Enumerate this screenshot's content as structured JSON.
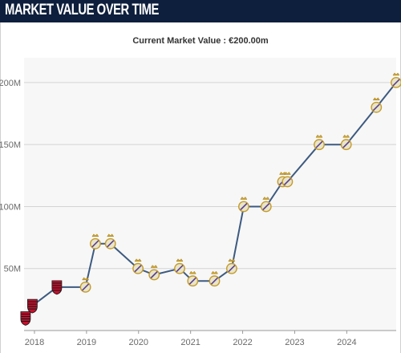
{
  "header": {
    "title": "MARKET VALUE OVER TIME"
  },
  "subtitle": "Current Market Value : €200.00m",
  "colors": {
    "header_bg": "#0d1f3c",
    "line": "#3d5a80",
    "plot_bg": "#f7f7f7",
    "grid": "#d4d4d4",
    "club_flamengo": "#c8102e",
    "club_real_madrid": "#e9e5c9"
  },
  "chart_data": {
    "type": "line",
    "title": "",
    "xlabel": "",
    "ylabel": "",
    "x_ticks": [
      "2018",
      "2019",
      "2020",
      "2021",
      "2022",
      "2023",
      "2024"
    ],
    "y_ticks": [
      "50M",
      "100M",
      "150M",
      "200M"
    ],
    "ylim": [
      0,
      220
    ],
    "xlim": [
      2017.8,
      2024.95
    ],
    "grid": "horizontal",
    "legend": "none",
    "series": [
      {
        "x": [
          2017.83,
          2017.96,
          2018.43,
          2018.98,
          2019.17,
          2019.46,
          2019.99,
          2020.3,
          2020.79,
          2021.04,
          2021.46,
          2021.79,
          2022.02,
          2022.45,
          2022.77,
          2022.86,
          2023.47,
          2023.99,
          2024.57,
          2024.95
        ],
        "y": [
          10,
          20,
          35,
          35,
          70,
          70,
          50,
          45,
          50,
          40,
          40,
          50,
          100,
          100,
          120,
          120,
          150,
          150,
          180,
          200
        ],
        "club": [
          "Flamengo",
          "Flamengo",
          "Flamengo",
          "Real Madrid",
          "Real Madrid",
          "Real Madrid",
          "Real Madrid",
          "Real Madrid",
          "Real Madrid",
          "Real Madrid",
          "Real Madrid",
          "Real Madrid",
          "Real Madrid",
          "Real Madrid",
          "Real Madrid",
          "Real Madrid",
          "Real Madrid",
          "Real Madrid",
          "Real Madrid",
          "Real Madrid"
        ]
      }
    ]
  }
}
